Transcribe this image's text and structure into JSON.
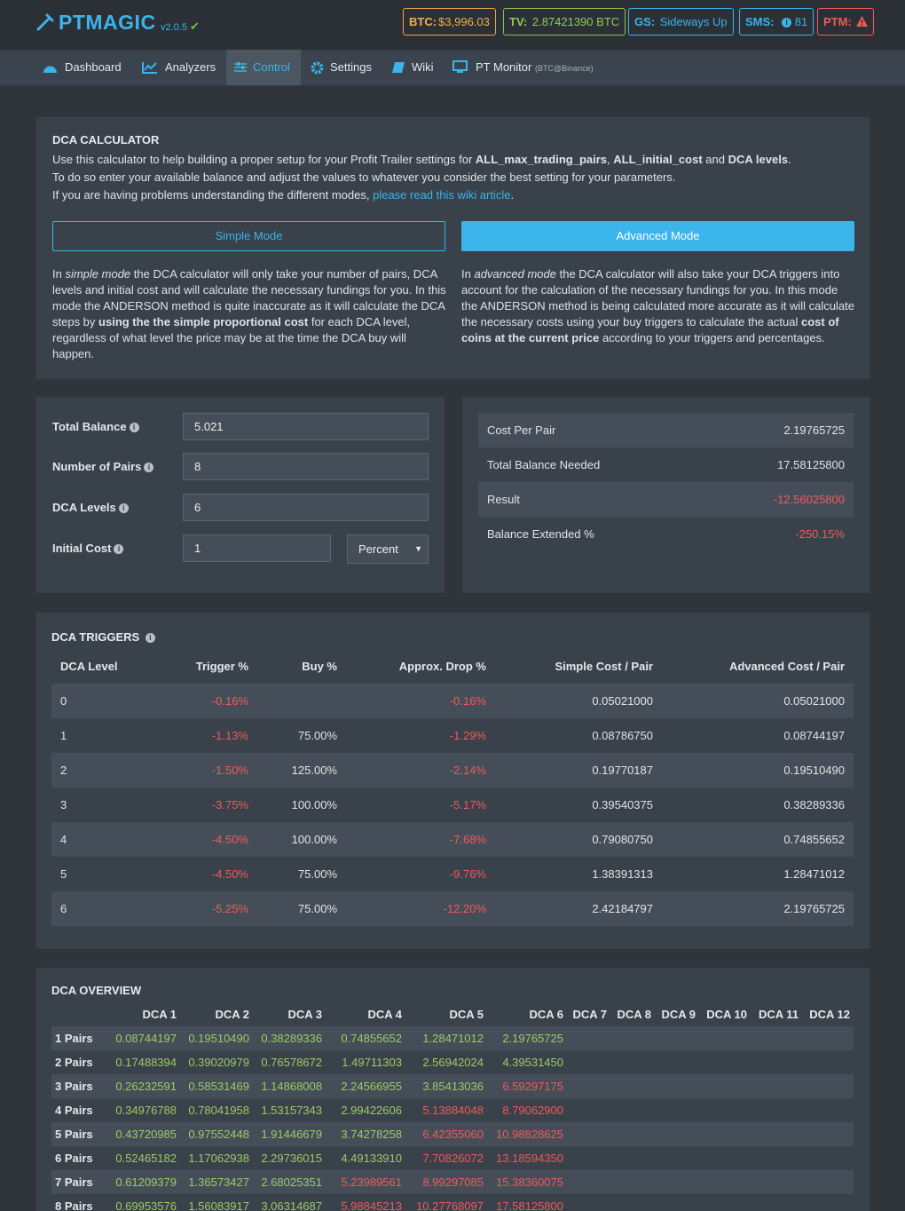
{
  "header": {
    "logo": "PTMAGIC",
    "version": "v2.0.5",
    "badges": [
      {
        "label": "BTC:",
        "value": "$3,996.03"
      },
      {
        "label": "TV:",
        "value": "2.87421390 BTC"
      },
      {
        "label": "GS:",
        "value": "Sideways Up"
      },
      {
        "label": "SMS:",
        "value": "81"
      },
      {
        "label": "PTM:"
      }
    ]
  },
  "nav": {
    "items": [
      "Dashboard",
      "Analyzers",
      "Control",
      "Settings",
      "Wiki",
      "PT Monitor"
    ],
    "monitor_note": "(BTC@Binance)"
  },
  "calculator": {
    "title": "DCA CALCULATOR",
    "intro": {
      "line1": [
        "Use this calculator to help building a proper setup for your Profit Trailer settings for ",
        "ALL_max_trading_pairs",
        ", ",
        "ALL_initial_cost",
        " and ",
        "DCA levels",
        "."
      ],
      "line2": "To do so enter your available balance and adjust the values to whatever you consider the best setting for your parameters.",
      "line3": [
        "If you are having problems understanding the different modes, ",
        "please read this wiki article",
        "."
      ]
    },
    "modes": [
      {
        "button": "Simple Mode",
        "description": [
          "In ",
          "simple mode",
          " the DCA calculator will only take your number of pairs, DCA levels and initial cost and will calculate the necessary fundings for you. In this mode the ANDERSON method is quite inaccurate as it will calculate the DCA steps by ",
          "using the the simple proportional cost",
          " for each DCA level, regardless of what level the price may be at the time the DCA buy will happen."
        ]
      },
      {
        "button": "Advanced Mode",
        "description": [
          "In ",
          "advanced mode",
          " the DCA calculator will also take your DCA triggers into account for the calculation of the necessary fundings for you. In this mode the ANDERSON method is being calculated more accurate as it will calculate the necessary costs using your buy triggers to calculate the actual ",
          "cost of coins at the current price",
          " according to your triggers and percentages."
        ]
      }
    ]
  },
  "form": {
    "fields": [
      {
        "label": "Total Balance",
        "value": "5.021"
      },
      {
        "label": "Number of Pairs",
        "value": "8"
      },
      {
        "label": "DCA Levels",
        "value": "6"
      },
      {
        "label": "Initial Cost",
        "value": "1"
      }
    ],
    "initial_cost_mode": "Percent"
  },
  "results": [
    {
      "label": "Cost Per Pair",
      "value": "2.19765725"
    },
    {
      "label": "Total Balance Needed",
      "value": "17.58125800"
    },
    {
      "label": "Result",
      "value": "-12.56025800"
    },
    {
      "label": "Balance Extended %",
      "value": "-250.15%"
    }
  ],
  "triggers": {
    "title": "DCA TRIGGERS",
    "columns": [
      "DCA Level",
      "Trigger %",
      "Buy %",
      "Approx. Drop %",
      "Simple Cost / Pair",
      "Advanced Cost / Pair"
    ],
    "rows": [
      [
        "0",
        "-0.16%",
        null,
        "-0.16%",
        "0.05021000",
        "0.05021000"
      ],
      [
        "1",
        "-1.13%",
        "75.00%",
        "-1.29%",
        "0.08786750",
        "0.08744197"
      ],
      [
        "2",
        "-1.50%",
        "125.00%",
        "-2.14%",
        "0.19770187",
        "0.19510490"
      ],
      [
        "3",
        "-3.75%",
        "100.00%",
        "-5.17%",
        "0.39540375",
        "0.38289336"
      ],
      [
        "4",
        "-4.50%",
        "100.00%",
        "-7.68%",
        "0.79080750",
        "0.74855652"
      ],
      [
        "5",
        "-4.50%",
        "75.00%",
        "-9.76%",
        "1.38391313",
        "1.28471012"
      ],
      [
        "6",
        "-5.25%",
        "75.00%",
        "-12.20%",
        "2.42184797",
        "2.19765725"
      ]
    ]
  },
  "overview": {
    "title": "DCA OVERVIEW",
    "columns": [
      "DCA 1",
      "DCA 2",
      "DCA 3",
      "DCA 4",
      "DCA 5",
      "DCA 6",
      "DCA 7",
      "DCA 8",
      "DCA 9",
      "DCA 10",
      "DCA 11",
      "DCA 12"
    ],
    "rows": [
      {
        "label": "1 Pairs",
        "values": [
          "0.08744197",
          "0.19510490",
          "0.38289336",
          "0.74855652",
          "1.28471012",
          "2.19765725"
        ]
      },
      {
        "label": "2 Pairs",
        "values": [
          "0.17488394",
          "0.39020979",
          "0.76578672",
          "1.49711303",
          "2.56942024",
          "4.39531450"
        ]
      },
      {
        "label": "3 Pairs",
        "values": [
          "0.26232591",
          "0.58531469",
          "1.14868008",
          "2.24566955",
          "3.85413036",
          "6.59297175"
        ]
      },
      {
        "label": "4 Pairs",
        "values": [
          "0.34976788",
          "0.78041958",
          "1.53157343",
          "2.99422606",
          "5.13884048",
          "8.79062900"
        ]
      },
      {
        "label": "5 Pairs",
        "values": [
          "0.43720985",
          "0.97552448",
          "1.91446679",
          "3.74278258",
          "6.42355060",
          "10.98828625"
        ]
      },
      {
        "label": "6 Pairs",
        "values": [
          "0.52465182",
          "1.17062938",
          "2.29736015",
          "4.49133910",
          "7.70826072",
          "13.18594350"
        ]
      },
      {
        "label": "7 Pairs",
        "values": [
          "0.61209379",
          "1.36573427",
          "2.68025351",
          "5.23989561",
          "8.99297085",
          "15.38360075"
        ]
      },
      {
        "label": "8 Pairs",
        "values": [
          "0.69953576",
          "1.56083917",
          "3.06314687",
          "5.98845213",
          "10.27768097",
          "17.58125800"
        ]
      }
    ]
  }
}
